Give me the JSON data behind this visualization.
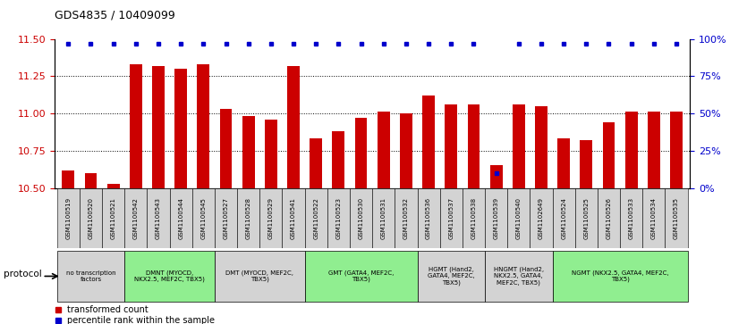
{
  "title": "GDS4835 / 10409099",
  "samples": [
    "GSM1100519",
    "GSM1100520",
    "GSM1100521",
    "GSM1100542",
    "GSM1100543",
    "GSM1100544",
    "GSM1100545",
    "GSM1100527",
    "GSM1100528",
    "GSM1100529",
    "GSM1100541",
    "GSM1100522",
    "GSM1100523",
    "GSM1100530",
    "GSM1100531",
    "GSM1100532",
    "GSM1100536",
    "GSM1100537",
    "GSM1100538",
    "GSM1100539",
    "GSM1100540",
    "GSM1102649",
    "GSM1100524",
    "GSM1100525",
    "GSM1100526",
    "GSM1100533",
    "GSM1100534",
    "GSM1100535"
  ],
  "bar_values": [
    10.62,
    10.6,
    10.53,
    11.33,
    11.32,
    11.3,
    11.33,
    11.03,
    10.98,
    10.96,
    11.32,
    10.83,
    10.88,
    10.97,
    11.01,
    11.0,
    11.12,
    11.06,
    11.06,
    10.65,
    11.06,
    11.05,
    10.83,
    10.82,
    10.94,
    11.01,
    11.01,
    11.01
  ],
  "percentile_values": [
    97,
    97,
    97,
    97,
    97,
    97,
    97,
    97,
    97,
    97,
    97,
    97,
    97,
    97,
    97,
    97,
    97,
    97,
    97,
    10,
    97,
    97,
    97,
    97,
    97,
    97,
    97,
    97
  ],
  "protocols": [
    {
      "label": "no transcription\nfactors",
      "start": 0,
      "end": 3,
      "color": "#d3d3d3"
    },
    {
      "label": "DMNT (MYOCD,\nNKX2.5, MEF2C, TBX5)",
      "start": 3,
      "end": 7,
      "color": "#90ee90"
    },
    {
      "label": "DMT (MYOCD, MEF2C,\nTBX5)",
      "start": 7,
      "end": 11,
      "color": "#d3d3d3"
    },
    {
      "label": "GMT (GATA4, MEF2C,\nTBX5)",
      "start": 11,
      "end": 16,
      "color": "#90ee90"
    },
    {
      "label": "HGMT (Hand2,\nGATA4, MEF2C,\nTBX5)",
      "start": 16,
      "end": 19,
      "color": "#d3d3d3"
    },
    {
      "label": "HNGMT (Hand2,\nNKX2.5, GATA4,\nMEF2C, TBX5)",
      "start": 19,
      "end": 22,
      "color": "#d3d3d3"
    },
    {
      "label": "NGMT (NKX2.5, GATA4, MEF2C,\nTBX5)",
      "start": 22,
      "end": 28,
      "color": "#90ee90"
    }
  ],
  "ylim_left": [
    10.5,
    11.5
  ],
  "ylim_right": [
    0,
    100
  ],
  "yticks_left": [
    10.5,
    10.75,
    11.0,
    11.25,
    11.5
  ],
  "yticks_right": [
    0,
    25,
    50,
    75,
    100
  ],
  "bar_color": "#cc0000",
  "dot_color": "#0000cc",
  "background_color": "#ffffff",
  "grid_color": "#000000",
  "legend_label_bar": "transformed count",
  "legend_label_dot": "percentile rank within the sample",
  "ylabel_left_color": "#cc0000",
  "ylabel_right_color": "#0000cc",
  "protocol_label": "protocol"
}
